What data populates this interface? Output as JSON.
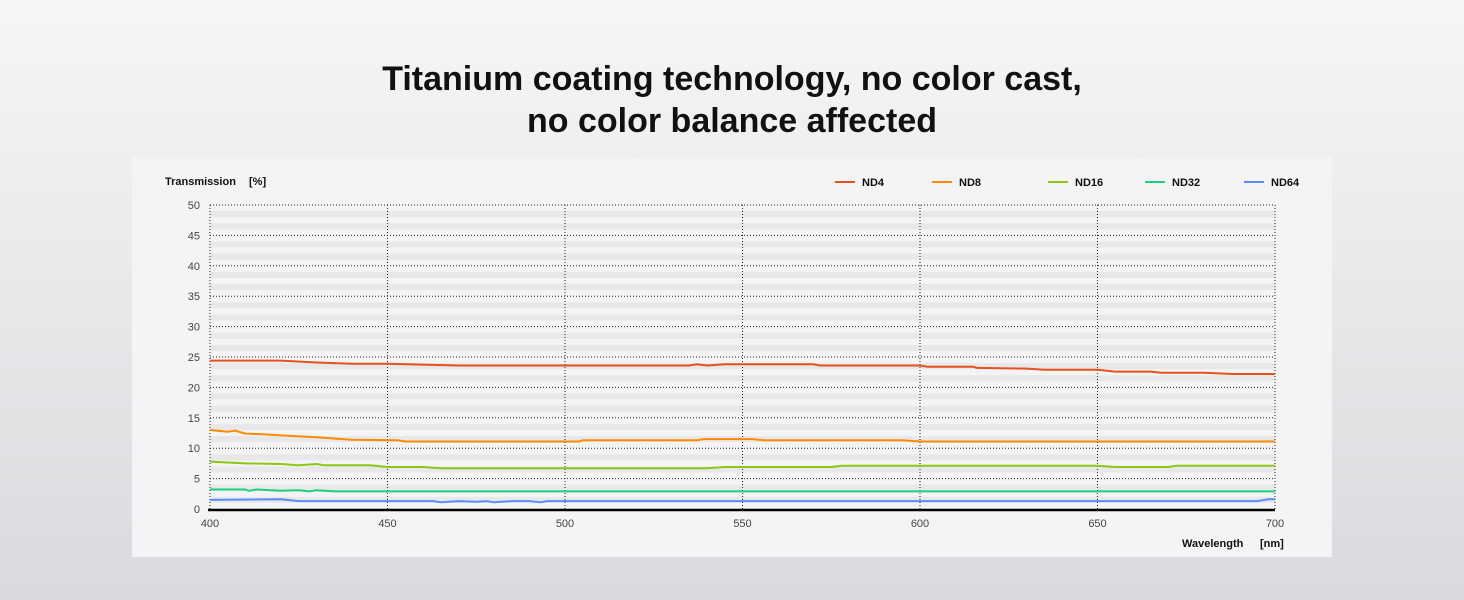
{
  "title_line1": "Titanium coating technology, no color cast,",
  "title_line2": "no color balance affected",
  "chart_data": {
    "type": "line",
    "ylabel": "Transmission",
    "yunit": "[%]",
    "xlabel": "Wavelength",
    "xunit": "[nm]",
    "xlim": [
      400,
      700
    ],
    "ylim": [
      0,
      50
    ],
    "xticks": [
      400,
      450,
      500,
      550,
      600,
      650,
      700
    ],
    "yticks": [
      0,
      5,
      10,
      15,
      20,
      25,
      30,
      35,
      40,
      45,
      50
    ],
    "grid": true,
    "legend": "top-right",
    "series": [
      {
        "name": "ND4",
        "color": "#e8501e",
        "points": [
          [
            400,
            24.4
          ],
          [
            420,
            24.4
          ],
          [
            430,
            24.1
          ],
          [
            440,
            23.9
          ],
          [
            450,
            23.9
          ],
          [
            470,
            23.6
          ],
          [
            535,
            23.6
          ],
          [
            537,
            23.8
          ],
          [
            540,
            23.6
          ],
          [
            545,
            23.8
          ],
          [
            570,
            23.8
          ],
          [
            572,
            23.6
          ],
          [
            600,
            23.6
          ],
          [
            602,
            23.4
          ],
          [
            615,
            23.4
          ],
          [
            616,
            23.2
          ],
          [
            630,
            23.1
          ],
          [
            635,
            22.9
          ],
          [
            650,
            22.9
          ],
          [
            655,
            22.6
          ],
          [
            665,
            22.6
          ],
          [
            668,
            22.4
          ],
          [
            680,
            22.4
          ],
          [
            688,
            22.2
          ],
          [
            700,
            22.2
          ]
        ]
      },
      {
        "name": "ND8",
        "color": "#ff8a00",
        "points": [
          [
            400,
            13.0
          ],
          [
            405,
            12.7
          ],
          [
            407,
            12.9
          ],
          [
            410,
            12.4
          ],
          [
            415,
            12.3
          ],
          [
            420,
            12.1
          ],
          [
            430,
            11.8
          ],
          [
            440,
            11.4
          ],
          [
            453,
            11.3
          ],
          [
            455,
            11.1
          ],
          [
            504,
            11.1
          ],
          [
            505,
            11.3
          ],
          [
            537,
            11.3
          ],
          [
            539,
            11.5
          ],
          [
            553,
            11.5
          ],
          [
            556,
            11.3
          ],
          [
            595,
            11.3
          ],
          [
            600,
            11.1
          ],
          [
            700,
            11.1
          ]
        ]
      },
      {
        "name": "ND16",
        "color": "#8cc813",
        "points": [
          [
            400,
            7.8
          ],
          [
            410,
            7.5
          ],
          [
            420,
            7.4
          ],
          [
            425,
            7.2
          ],
          [
            430,
            7.4
          ],
          [
            432,
            7.2
          ],
          [
            445,
            7.2
          ],
          [
            450,
            6.9
          ],
          [
            460,
            6.9
          ],
          [
            465,
            6.7
          ],
          [
            540,
            6.7
          ],
          [
            545,
            6.9
          ],
          [
            575,
            6.9
          ],
          [
            578,
            7.1
          ],
          [
            650,
            7.1
          ],
          [
            655,
            6.9
          ],
          [
            670,
            6.9
          ],
          [
            672,
            7.1
          ],
          [
            700,
            7.1
          ]
        ]
      },
      {
        "name": "ND32",
        "color": "#19d27c",
        "points": [
          [
            400,
            3.2
          ],
          [
            410,
            3.2
          ],
          [
            411,
            3.0
          ],
          [
            413,
            3.2
          ],
          [
            420,
            3.0
          ],
          [
            425,
            3.1
          ],
          [
            428,
            2.9
          ],
          [
            430,
            3.1
          ],
          [
            435,
            2.9
          ],
          [
            700,
            2.9
          ]
        ]
      },
      {
        "name": "ND64",
        "color": "#5a8cff",
        "points": [
          [
            400,
            1.5
          ],
          [
            420,
            1.6
          ],
          [
            425,
            1.3
          ],
          [
            463,
            1.3
          ],
          [
            465,
            1.1
          ],
          [
            470,
            1.3
          ],
          [
            475,
            1.2
          ],
          [
            478,
            1.3
          ],
          [
            480,
            1.1
          ],
          [
            485,
            1.3
          ],
          [
            490,
            1.3
          ],
          [
            493,
            1.1
          ],
          [
            495,
            1.3
          ],
          [
            695,
            1.3
          ],
          [
            698,
            1.6
          ],
          [
            700,
            1.6
          ]
        ]
      }
    ]
  }
}
